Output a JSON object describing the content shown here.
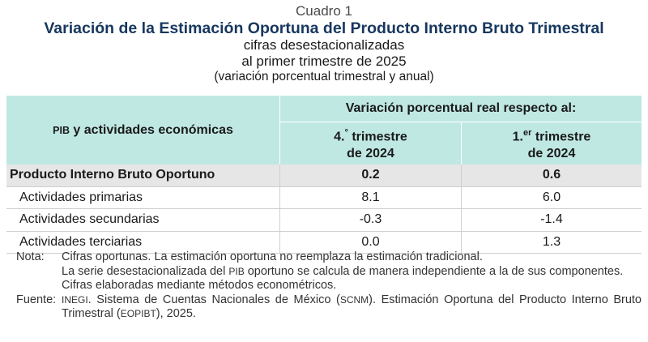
{
  "header": {
    "cuadro": "Cuadro 1",
    "title": "Variación de la Estimación Oportuna del Producto Interno Bruto Trimestral",
    "subtitle1": "cifras desestacionalizadas",
    "subtitle2": "al primer trimestre de 2025",
    "subtitle3": "(variación porcentual trimestral y anual)"
  },
  "table": {
    "concept_header_abbr": "PIB",
    "concept_header_rest": " y actividades económicas",
    "group_header": "Variación porcentual real respecto al:",
    "col1": {
      "num": "4.",
      "sup": "°",
      "rest": " trimestre",
      "year": "de 2024"
    },
    "col2": {
      "num": "1.",
      "sup": "er",
      "rest": " trimestre",
      "year": "de 2024"
    },
    "rows": [
      {
        "label": "Producto Interno Bruto Oportuno",
        "q": "0.2",
        "a": "0.6"
      },
      {
        "label": "Actividades primarias",
        "q": "8.1",
        "a": "6.0"
      },
      {
        "label": "Actividades secundarias",
        "q": "-0.3",
        "a": "-1.4"
      },
      {
        "label": "Actividades terciarias",
        "q": "0.0",
        "a": "1.3"
      }
    ]
  },
  "notes": {
    "nota_label": "Nota:",
    "nota_line1": "Cifras oportunas. La estimación oportuna no reemplaza la estimación tradicional.",
    "nota_line2a": "La serie desestacionalizada del ",
    "nota_line2_abbr": "PIB",
    "nota_line2b": " oportuno se calcula de manera independiente a la de sus componentes.",
    "nota_line3": "Cifras elaboradas mediante métodos econométricos.",
    "fuente_label": "Fuente:",
    "fuente_abbr1": "INEGI",
    "fuente_t1": ". Sistema de Cuentas Nacionales de México (",
    "fuente_abbr2": "SCNM",
    "fuente_t2": "). Estimación Oportuna del Producto Interno Bruto Trimestral (",
    "fuente_abbr3": "EOPIBT",
    "fuente_t3": "), 2025."
  },
  "colors": {
    "title": "#17375e",
    "header_bg": "#bfe8e3",
    "total_bg": "#e6e6e6"
  }
}
